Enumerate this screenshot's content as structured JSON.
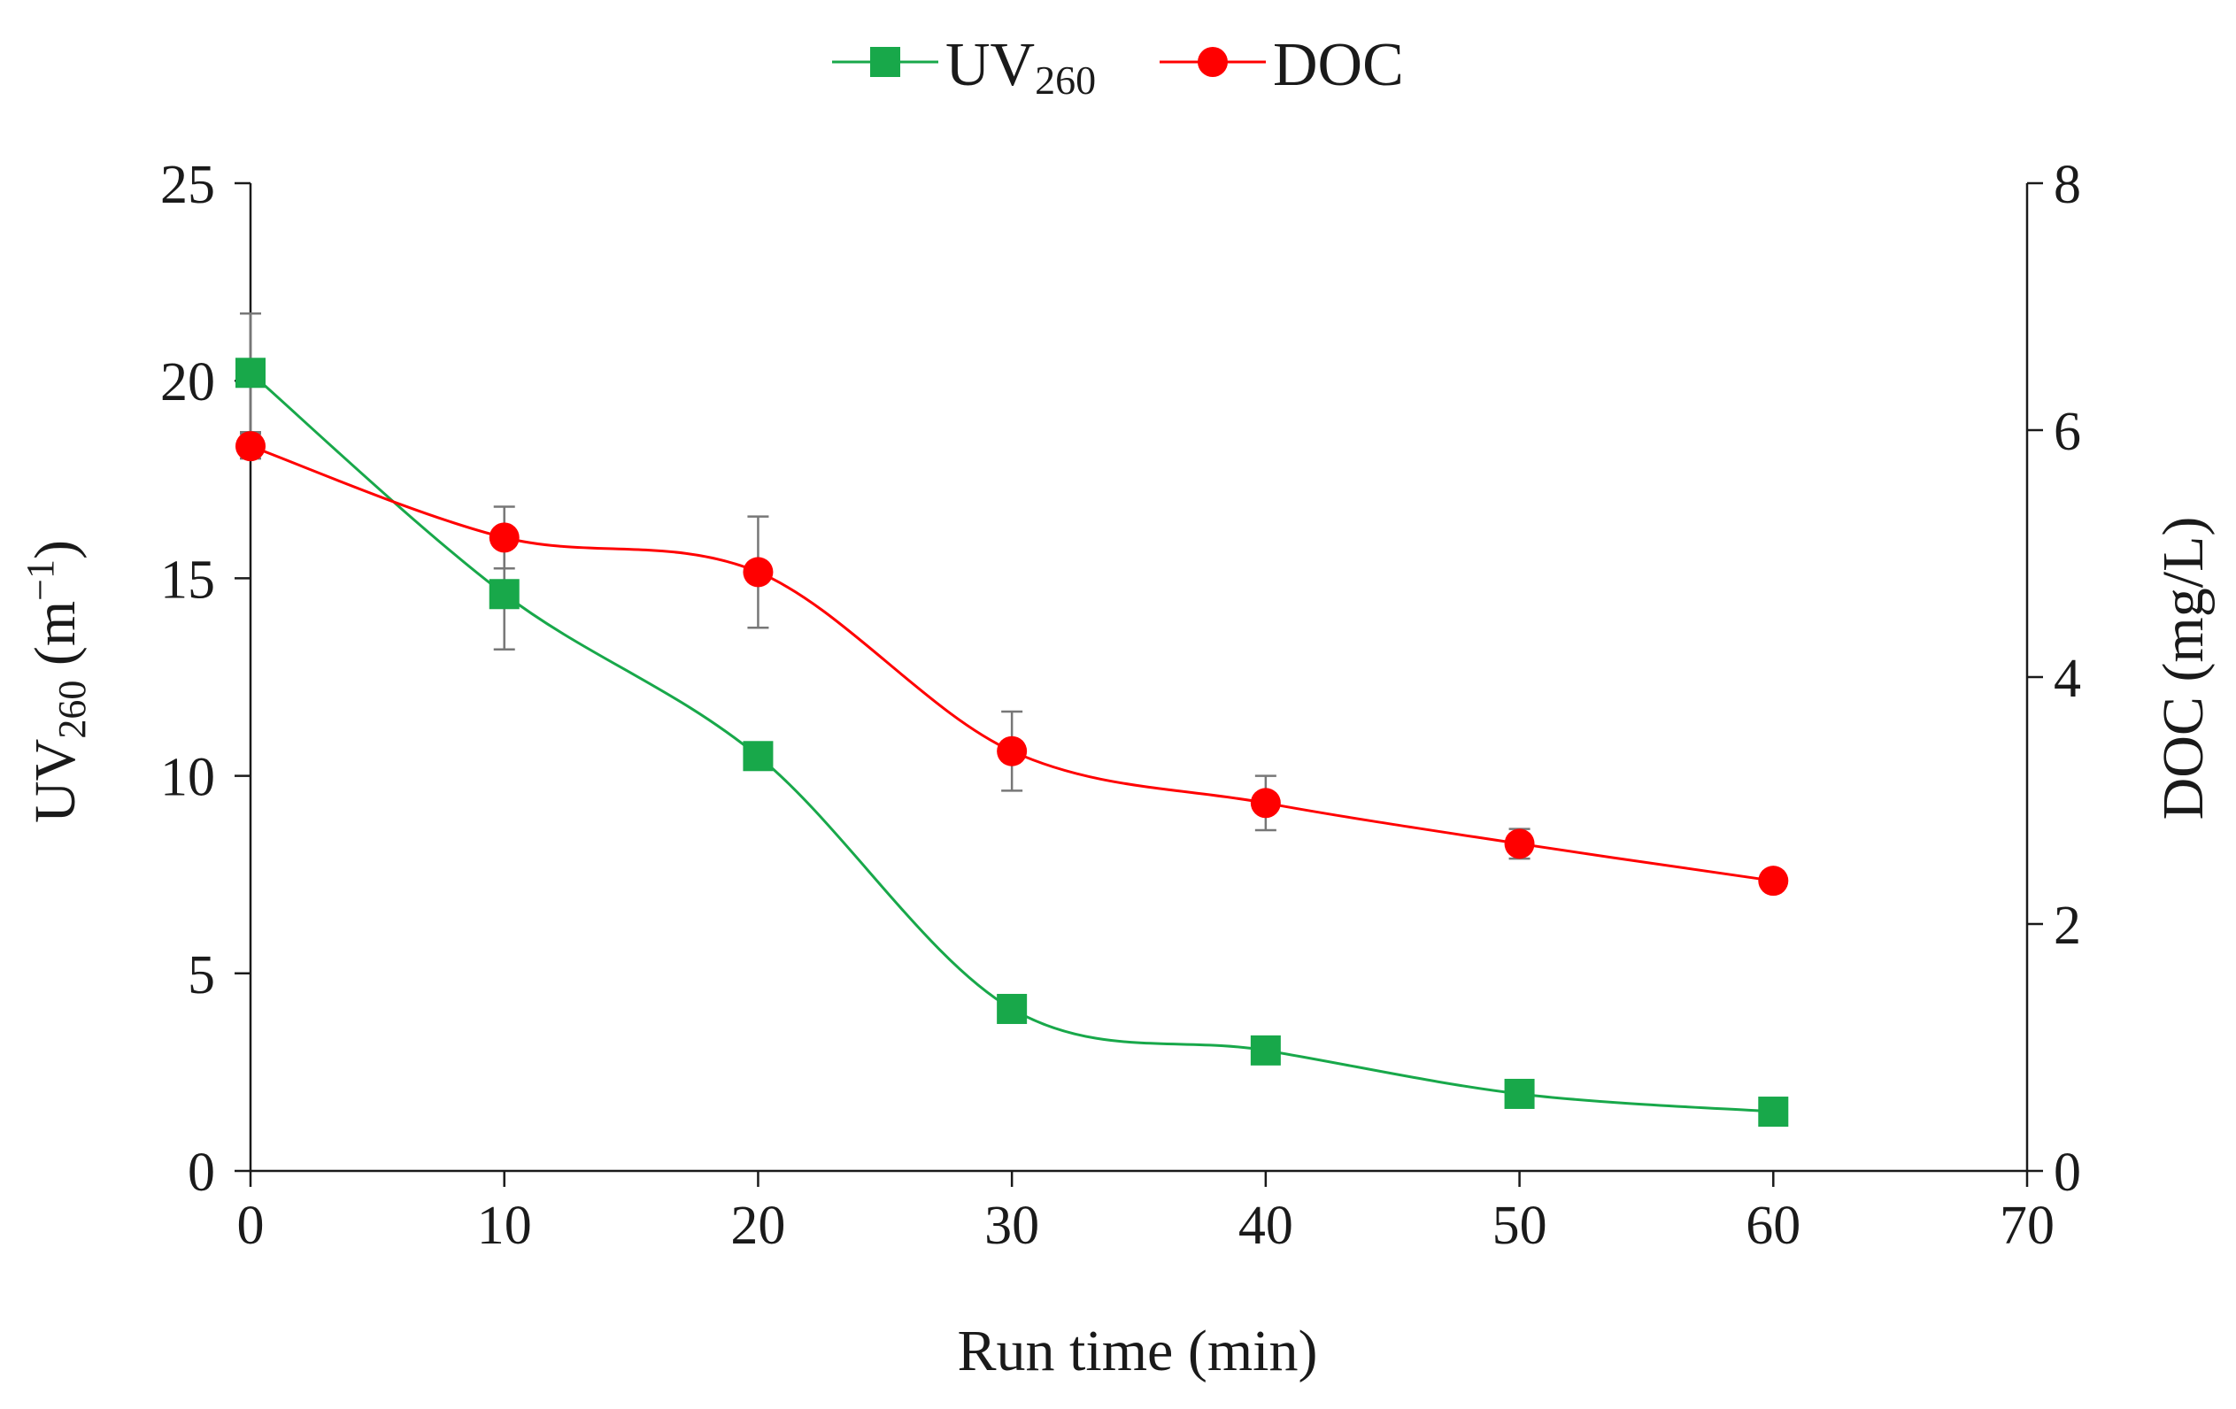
{
  "chart_data": {
    "type": "line",
    "x": [
      0,
      10,
      20,
      30,
      40,
      50,
      60
    ],
    "xlabel": "Run time (min)",
    "xlim": [
      0,
      70
    ],
    "xticks": [
      "0",
      "10",
      "20",
      "30",
      "40",
      "50",
      "60",
      "70"
    ],
    "ylabel_left": {
      "main": "UV",
      "sub": "260",
      "suffix": " (m",
      "sup": "−1",
      "close": ")"
    },
    "ylim_left": [
      0,
      25
    ],
    "yticks_left": [
      "0",
      "5",
      "10",
      "15",
      "20",
      "25"
    ],
    "ylabel_right": "DOC (mg/L)",
    "ylim_right": [
      0,
      8
    ],
    "yticks_right": [
      "0",
      "2",
      "4",
      "6",
      "8"
    ],
    "grid": false,
    "legend_position": "top-center",
    "series": [
      {
        "name": "UV260",
        "legend_main": "UV",
        "legend_sub": "260",
        "axis": "left",
        "marker": "square",
        "color": "#18A84A",
        "values": [
          20.2,
          14.6,
          10.5,
          4.1,
          3.05,
          1.95,
          1.5
        ],
        "errors": [
          1.5,
          1.4,
          0.1,
          0.1,
          0.1,
          0.1,
          0.1
        ]
      },
      {
        "name": "DOC",
        "legend_main": "DOC",
        "axis": "right",
        "marker": "circle",
        "color": "#FF0000",
        "values": [
          5.87,
          5.13,
          4.85,
          3.4,
          2.98,
          2.65,
          2.35
        ],
        "errors": [
          0.1,
          0.25,
          0.45,
          0.32,
          0.22,
          0.12,
          0.05
        ]
      }
    ]
  }
}
